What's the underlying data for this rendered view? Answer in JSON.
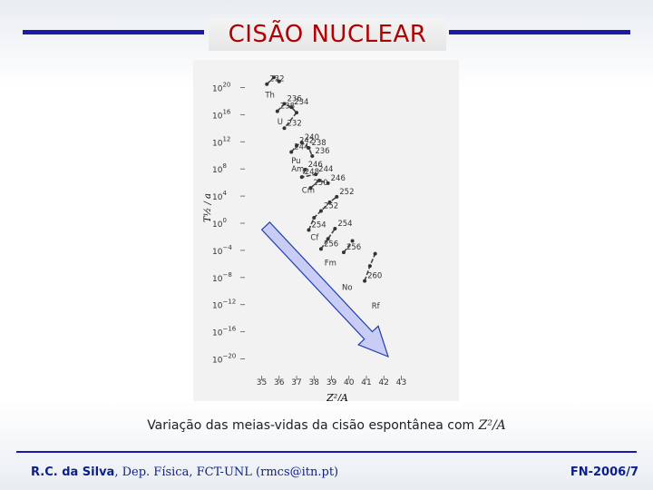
{
  "slide": {
    "title": "CISÃO NUCLEAR",
    "caption_text": "Variação das meias-vidas da cisão espontânea com ",
    "caption_var": "Z²/A",
    "footer_author": "R.C. da Silva",
    "footer_rest": ", Dep. Física, FCT-UNL (rmcs@itn.pt)",
    "footer_code": "FN-2006/7"
  },
  "colors": {
    "rule": "#1a1aa8",
    "title": "#b00000",
    "footer": "#0c1f8c",
    "arrow_fill": "#c9cdf5",
    "arrow_stroke": "#1e3fb0"
  },
  "chart_data": {
    "type": "scatter",
    "xlabel": "Z²/A",
    "ylabel": "T½ / a",
    "xlim": [
      34.3,
      43.7
    ],
    "ylim_log10": [
      -23,
      23
    ],
    "x_ticks": [
      "35",
      "36",
      "37",
      "38",
      "39",
      "40",
      "41",
      "42",
      "43"
    ],
    "y_ticks": [
      {
        "base": "10",
        "exp": "20",
        "log": 20
      },
      {
        "base": "10",
        "exp": "16",
        "log": 16
      },
      {
        "base": "10",
        "exp": "12",
        "log": 12
      },
      {
        "base": "10",
        "exp": "8",
        "log": 8
      },
      {
        "base": "10",
        "exp": "4",
        "log": 4
      },
      {
        "base": "10",
        "exp": "0",
        "log": 0
      },
      {
        "base": "10",
        "exp": "−4",
        "log": -4
      },
      {
        "base": "10",
        "exp": "−8",
        "log": -8
      },
      {
        "base": "10",
        "exp": "−12",
        "log": -12
      },
      {
        "base": "10",
        "exp": "−16",
        "log": -16
      },
      {
        "base": "10",
        "exp": "−20",
        "log": -20
      }
    ],
    "series": [
      {
        "name": "Th",
        "label_at": [
          35.2,
          18.5
        ],
        "points": [
          {
            "x": 35.3,
            "log": 20.5,
            "A": "232"
          },
          {
            "x": 35.7,
            "log": 21.5
          },
          {
            "x": 36.0,
            "log": 20.9
          }
        ]
      },
      {
        "name": "U",
        "label_at": [
          35.9,
          14.6
        ],
        "points": [
          {
            "x": 35.9,
            "log": 16.5,
            "A": "238"
          },
          {
            "x": 36.3,
            "log": 17.6,
            "A": "236"
          },
          {
            "x": 36.7,
            "log": 17.1,
            "A": "234"
          },
          {
            "x": 37.0,
            "log": 16.3
          },
          {
            "x": 36.3,
            "log": 14.0,
            "A": "232"
          }
        ]
      },
      {
        "name": "Pu",
        "label_at": [
          36.7,
          8.8
        ],
        "points": [
          {
            "x": 36.7,
            "log": 10.5,
            "A": "244"
          },
          {
            "x": 37.0,
            "log": 11.4,
            "A": "242"
          },
          {
            "x": 37.3,
            "log": 11.9,
            "A": "240"
          },
          {
            "x": 37.7,
            "log": 11.1,
            "A": "238"
          },
          {
            "x": 37.9,
            "log": 9.9,
            "A": "236"
          }
        ]
      },
      {
        "name": "Am",
        "label_at": [
          36.7,
          7.6
        ],
        "points": [
          {
            "x": 37.5,
            "log": 7.9,
            "A": "246"
          },
          {
            "x": 37.3,
            "log": 6.8,
            "A": "248"
          },
          {
            "x": 38.1,
            "log": 7.2,
            "A": "244"
          }
        ]
      },
      {
        "name": "Cm",
        "label_at": [
          37.3,
          4.5
        ],
        "points": [
          {
            "x": 37.8,
            "log": 5.2,
            "A": "250"
          },
          {
            "x": 38.3,
            "log": 6.3
          },
          {
            "x": 38.8,
            "log": 5.9,
            "A": "246"
          }
        ]
      },
      {
        "name": "Cf",
        "label_at": [
          37.8,
          -2.5
        ],
        "points": [
          {
            "x": 37.7,
            "log": -1.0,
            "A": "254"
          },
          {
            "x": 38.0,
            "log": 0.8
          },
          {
            "x": 38.4,
            "log": 1.8,
            "A": "252"
          },
          {
            "x": 38.9,
            "log": 3.1
          },
          {
            "x": 39.3,
            "log": 3.9,
            "A": "252"
          }
        ]
      },
      {
        "name": "Fm",
        "label_at": [
          38.6,
          -6.2
        ],
        "points": [
          {
            "x": 38.4,
            "log": -3.8,
            "A": "256"
          },
          {
            "x": 38.8,
            "log": -2.3
          },
          {
            "x": 39.2,
            "log": -0.8,
            "A": "254"
          }
        ]
      },
      {
        "name": "No",
        "label_at": [
          39.6,
          -9.8
        ],
        "points": [
          {
            "x": 39.7,
            "log": -4.3,
            "A": "256"
          },
          {
            "x": 40.2,
            "log": -2.6
          }
        ]
      },
      {
        "name": "Rf",
        "label_at": [
          41.3,
          -12.6
        ],
        "points": [
          {
            "x": 40.9,
            "log": -8.5,
            "A": "260"
          },
          {
            "x": 41.2,
            "log": -6.3
          },
          {
            "x": 41.5,
            "log": -4.5
          }
        ]
      }
    ]
  }
}
